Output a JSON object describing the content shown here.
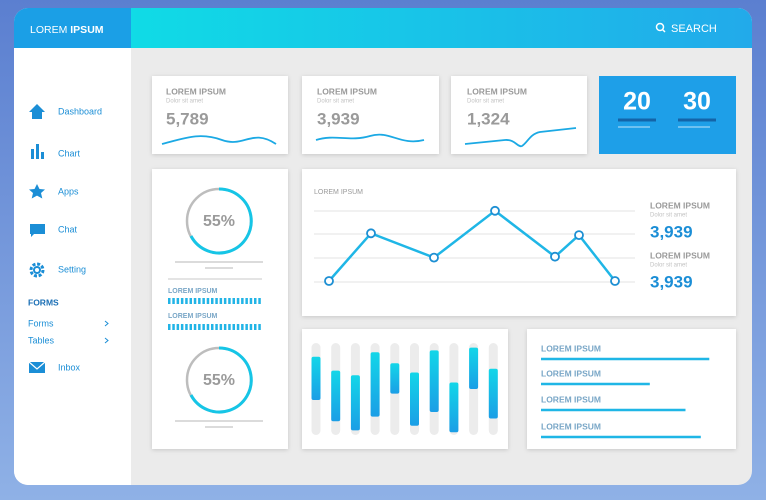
{
  "header": {
    "logo_light": "LOREM",
    "logo_bold": "IPSUM",
    "search": "SEARCH"
  },
  "sidebar": {
    "items": [
      "Dashboard",
      "Chart",
      "Apps",
      "Chat",
      "Setting"
    ],
    "section": "FORMS",
    "sub_items": [
      "Forms",
      "Tables"
    ],
    "inbox": "Inbox"
  },
  "stats": [
    {
      "title": "LOREM IPSUM",
      "subtitle": "Dolor sit amet",
      "value": "5,789"
    },
    {
      "title": "LOREM IPSUM",
      "subtitle": "Dolor sit amet",
      "value": "3,939"
    },
    {
      "title": "LOREM IPSUM",
      "subtitle": "Dolor sit amet",
      "value": "1,324"
    }
  ],
  "counters": [
    "20",
    "30"
  ],
  "gauges": [
    {
      "value": "55%"
    },
    {
      "value": "55%"
    }
  ],
  "gauge_labels": [
    "LOREM IPSUM",
    "LOREM IPSUM"
  ],
  "line_panel": {
    "title": "LOREM IPSUM",
    "values": [
      10,
      63,
      36,
      88,
      37,
      61,
      10
    ],
    "ylim": [
      0,
      100
    ],
    "figures": [
      {
        "title": "LOREM IPSUM",
        "subtitle": "Dolor sit amet",
        "value": "3,939"
      },
      {
        "title": "LOREM IPSUM",
        "subtitle": "Dolor sit amet",
        "value": "3,939"
      }
    ]
  },
  "bar_panel": {
    "ylim": [
      0,
      100
    ],
    "bars": [
      {
        "low": 38,
        "high": 85
      },
      {
        "low": 15,
        "high": 70
      },
      {
        "low": 5,
        "high": 65
      },
      {
        "low": 20,
        "high": 90
      },
      {
        "low": 45,
        "high": 78
      },
      {
        "low": 10,
        "high": 68
      },
      {
        "low": 25,
        "high": 92
      },
      {
        "low": 3,
        "high": 57
      },
      {
        "low": 50,
        "high": 95
      },
      {
        "low": 18,
        "high": 72
      }
    ]
  },
  "list_panel": {
    "max": 100,
    "items": [
      {
        "label": "LOREM IPSUM",
        "progress": 99
      },
      {
        "label": "LOREM IPSUM",
        "progress": 64
      },
      {
        "label": "LOREM IPSUM",
        "progress": 85
      },
      {
        "label": "LOREM IPSUM",
        "progress": 94
      }
    ]
  }
}
